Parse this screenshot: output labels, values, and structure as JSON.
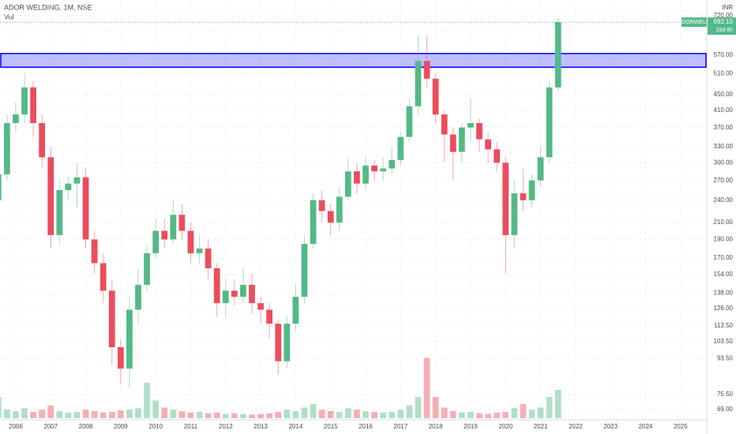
{
  "chart_data": {
    "type": "candlestick",
    "title": "ADOR WELDING, 1M, NSE",
    "subtitle": "Vol",
    "currency": "INR",
    "symbol": "ADORWELD",
    "price_tag": {
      "value": 693.1,
      "label": "693.10"
    },
    "countdown": "29d 6h",
    "log_scale": true,
    "grid": true,
    "up_color": "#53b987",
    "down_color": "#eb4d5c",
    "zone_color": "#0000ff",
    "zone": [
      530,
      575
    ],
    "x": [
      2005.5,
      2005.75,
      2006,
      2006.25,
      2006.5,
      2006.75,
      2007,
      2007.25,
      2007.5,
      2007.75,
      2008,
      2008.25,
      2008.5,
      2008.75,
      2009,
      2009.25,
      2009.5,
      2009.75,
      2010,
      2010.25,
      2010.5,
      2010.75,
      2011,
      2011.25,
      2011.5,
      2011.75,
      2012,
      2012.25,
      2012.5,
      2012.75,
      2013,
      2013.25,
      2013.5,
      2013.75,
      2014,
      2014.25,
      2014.5,
      2014.75,
      2015,
      2015.25,
      2015.5,
      2015.75,
      2016,
      2016.25,
      2016.5,
      2016.75,
      2017,
      2017.25,
      2017.5,
      2017.75,
      2018,
      2018.25,
      2018.5,
      2018.75,
      2019,
      2019.25,
      2019.5,
      2019.75,
      2020,
      2020.25,
      2020.5,
      2020.75,
      2021,
      2021.25,
      2021.5
    ],
    "open": [
      240,
      280,
      380,
      400,
      470,
      380,
      310,
      195,
      255,
      265,
      275,
      190,
      165,
      140,
      100,
      88,
      125,
      145,
      175,
      200,
      190,
      220,
      200,
      175,
      180,
      160,
      130,
      140,
      135,
      145,
      130,
      125,
      115,
      92,
      115,
      135,
      185,
      240,
      225,
      210,
      245,
      285,
      265,
      295,
      285,
      290,
      305,
      350,
      420,
      550,
      495,
      400,
      355,
      320,
      370,
      380,
      345,
      325,
      300,
      195,
      250,
      240,
      270,
      310,
      470
    ],
    "high": [
      300,
      400,
      430,
      510,
      490,
      400,
      330,
      270,
      275,
      300,
      290,
      200,
      175,
      150,
      105,
      135,
      160,
      185,
      215,
      215,
      240,
      235,
      210,
      195,
      190,
      165,
      150,
      150,
      160,
      155,
      135,
      130,
      118,
      120,
      145,
      195,
      250,
      255,
      235,
      260,
      310,
      300,
      310,
      305,
      310,
      330,
      360,
      440,
      640,
      640,
      510,
      410,
      370,
      380,
      440,
      390,
      360,
      340,
      310,
      270,
      290,
      280,
      330,
      490,
      710
    ],
    "low": [
      230,
      270,
      360,
      380,
      350,
      290,
      180,
      185,
      240,
      230,
      180,
      155,
      130,
      90,
      80,
      78,
      115,
      140,
      170,
      180,
      185,
      190,
      165,
      165,
      150,
      120,
      120,
      128,
      130,
      122,
      115,
      105,
      85,
      88,
      110,
      130,
      180,
      210,
      195,
      200,
      240,
      250,
      255,
      270,
      270,
      280,
      295,
      340,
      400,
      470,
      380,
      300,
      270,
      300,
      340,
      320,
      300,
      285,
      155,
      180,
      225,
      230,
      260,
      300,
      460
    ],
    "close": [
      280,
      380,
      400,
      470,
      380,
      310,
      195,
      255,
      265,
      275,
      190,
      165,
      140,
      100,
      88,
      125,
      145,
      175,
      200,
      190,
      220,
      200,
      175,
      180,
      160,
      130,
      140,
      135,
      145,
      130,
      125,
      115,
      92,
      115,
      135,
      185,
      240,
      225,
      210,
      245,
      285,
      265,
      295,
      285,
      290,
      305,
      350,
      420,
      550,
      495,
      400,
      355,
      320,
      370,
      380,
      345,
      325,
      300,
      195,
      250,
      240,
      270,
      310,
      470,
      693.1
    ],
    "volume": [
      30,
      12,
      10,
      14,
      9,
      12,
      18,
      10,
      8,
      9,
      12,
      10,
      8,
      9,
      11,
      12,
      14,
      50,
      25,
      15,
      12,
      10,
      8,
      9,
      7,
      8,
      6,
      7,
      6,
      5,
      6,
      7,
      9,
      12,
      10,
      15,
      20,
      12,
      10,
      9,
      14,
      12,
      10,
      9,
      8,
      9,
      12,
      18,
      30,
      85,
      30,
      15,
      10,
      8,
      9,
      7,
      6,
      8,
      9,
      14,
      20,
      12,
      15,
      30,
      40
    ],
    "vlim": [
      0,
      100
    ],
    "xlim": [
      2005.55,
      2025.75
    ],
    "xticks": [
      2006,
      2007,
      2008,
      2009,
      2010,
      2011,
      2012,
      2013,
      2014,
      2015,
      2016,
      2017,
      2018,
      2019,
      2020,
      2021,
      2022,
      2023,
      2024,
      2025
    ],
    "ylim": [
      65.5,
      791
    ],
    "yticks": [
      {
        "value": 720,
        "label": "720.00"
      },
      {
        "value": 660,
        "label": "660.00"
      },
      {
        "value": 570,
        "label": "570.00"
      },
      {
        "value": 510,
        "label": "510.00"
      },
      {
        "value": 450,
        "label": "450.00"
      },
      {
        "value": 410,
        "label": "410.00"
      },
      {
        "value": 370,
        "label": "370.00"
      },
      {
        "value": 330,
        "label": "330.00"
      },
      {
        "value": 300,
        "label": "300.00"
      },
      {
        "value": 270,
        "label": "270.00"
      },
      {
        "value": 240,
        "label": "240.00"
      },
      {
        "value": 210,
        "label": "210.00"
      },
      {
        "value": 190,
        "label": "190.00"
      },
      {
        "value": 170,
        "label": "170.00"
      },
      {
        "value": 154,
        "label": "154.00"
      },
      {
        "value": 138,
        "label": "138.00"
      },
      {
        "value": 126,
        "label": "126.00"
      },
      {
        "value": 113.5,
        "label": "113.50"
      },
      {
        "value": 103.5,
        "label": "103.50"
      },
      {
        "value": 93.5,
        "label": "93.50"
      },
      {
        "value": 75.5,
        "label": "75.50"
      },
      {
        "value": 69,
        "label": "69.00"
      }
    ]
  }
}
